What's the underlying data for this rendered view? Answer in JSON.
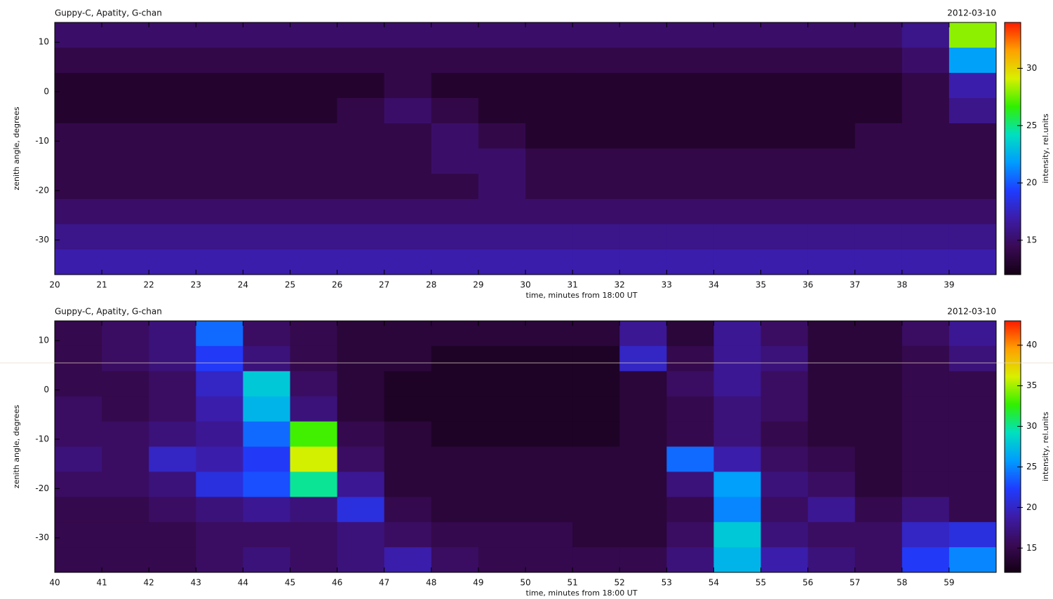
{
  "chart_data": [
    {
      "type": "heatmap",
      "title": "Guppy-C, Apatity, G-chan",
      "date": "2012-03-10",
      "xlabel": "time, minutes from 18:00 UT",
      "ylabel": "zenith angle, degrees",
      "colorbar_label": "intensity, rel.units",
      "xlim": [
        20,
        40
      ],
      "xticks": [
        20,
        21,
        22,
        23,
        24,
        25,
        26,
        27,
        28,
        29,
        30,
        31,
        32,
        33,
        34,
        35,
        36,
        37,
        38,
        39
      ],
      "ylim": [
        -37,
        14
      ],
      "yticks": [
        -30,
        -20,
        -10,
        0,
        10
      ],
      "clim": [
        12,
        34
      ],
      "cticks": [
        15,
        20,
        25,
        30
      ],
      "colormap": [
        "#140014",
        "#3a0a55",
        "#3c1ca8",
        "#1f3cff",
        "#009cff",
        "#00e0c0",
        "#30f000",
        "#d8f000",
        "#ffa000",
        "#ff1a00"
      ],
      "x": [
        20.5,
        21.5,
        22.5,
        23.5,
        24.5,
        25.5,
        26.5,
        27.5,
        28.5,
        29.5,
        30.5,
        31.5,
        32.5,
        33.5,
        34.5,
        35.5,
        36.5,
        37.5,
        38.5,
        39.5
      ],
      "y": [
        11.45,
        6.35,
        1.25,
        -3.85,
        -8.95,
        -14.05,
        -19.15,
        -24.25,
        -29.35,
        -34.45
      ],
      "z": [
        [
          15,
          15,
          15,
          15,
          15,
          15,
          15,
          15,
          15,
          15,
          15,
          15,
          15,
          15,
          15,
          15,
          15,
          15,
          16,
          28
        ],
        [
          14,
          14,
          14,
          14,
          14,
          14,
          14,
          14,
          14,
          14,
          14,
          14,
          14,
          14,
          14,
          14,
          14,
          14,
          15,
          22
        ],
        [
          13,
          13,
          13,
          13,
          13,
          13,
          13,
          14,
          13,
          13,
          13,
          13,
          13,
          13,
          13,
          13,
          13,
          13,
          14,
          17
        ],
        [
          13,
          13,
          13,
          13,
          13,
          13,
          14,
          15,
          14,
          13,
          13,
          13,
          13,
          13,
          13,
          13,
          13,
          13,
          14,
          16
        ],
        [
          14,
          14,
          14,
          14,
          14,
          14,
          14,
          14,
          15,
          14,
          13,
          13,
          13,
          13,
          13,
          13,
          13,
          14,
          14,
          14
        ],
        [
          14,
          14,
          14,
          14,
          14,
          14,
          14,
          14,
          15,
          15,
          14,
          14,
          14,
          14,
          14,
          14,
          14,
          14,
          14,
          14
        ],
        [
          14,
          14,
          14,
          14,
          14,
          14,
          14,
          14,
          14,
          15,
          14,
          14,
          14,
          14,
          14,
          14,
          14,
          14,
          14,
          14
        ],
        [
          15,
          15,
          15,
          15,
          15,
          15,
          15,
          15,
          15,
          15,
          15,
          15,
          15,
          15,
          15,
          15,
          15,
          15,
          15,
          15
        ],
        [
          16,
          16,
          16,
          16,
          16,
          16,
          16,
          16,
          16,
          16,
          16,
          16,
          16,
          16,
          16,
          16,
          16,
          16,
          16,
          16
        ],
        [
          17,
          17,
          17,
          17,
          17,
          17,
          17,
          17,
          17,
          17,
          17,
          17,
          17,
          17,
          17,
          17,
          17,
          17,
          17,
          17
        ]
      ]
    },
    {
      "type": "heatmap",
      "title": "Guppy-C, Apatity, G-chan",
      "date": "2012-03-10",
      "xlabel": "time, minutes from 18:00 UT",
      "ylabel": "zenith angle, degrees",
      "colorbar_label": "intensity, rel.units",
      "xlim": [
        40,
        60
      ],
      "xticks": [
        40,
        41,
        42,
        43,
        44,
        45,
        46,
        47,
        48,
        49,
        50,
        51,
        52,
        53,
        54,
        55,
        56,
        57,
        58,
        59
      ],
      "ylim": [
        -37,
        14
      ],
      "yticks": [
        -30,
        -20,
        -10,
        0,
        10
      ],
      "clim": [
        12,
        43
      ],
      "cticks": [
        15,
        20,
        25,
        30,
        35,
        40
      ],
      "colormap": [
        "#140014",
        "#3a0a55",
        "#3c1ca8",
        "#1f3cff",
        "#009cff",
        "#00e0c0",
        "#30f000",
        "#d8f000",
        "#ffa000",
        "#ff1a00"
      ],
      "x": [
        40.5,
        41.5,
        42.5,
        43.5,
        44.5,
        45.5,
        46.5,
        47.5,
        48.5,
        49.5,
        50.5,
        51.5,
        52.5,
        53.5,
        54.5,
        55.5,
        56.5,
        57.5,
        58.5,
        59.5
      ],
      "y": [
        11.45,
        6.35,
        1.25,
        -3.85,
        -8.95,
        -14.05,
        -19.15,
        -24.25,
        -29.35,
        -34.45
      ],
      "z": [
        [
          15,
          16,
          17,
          24,
          16,
          15,
          14,
          14,
          14,
          14,
          14,
          14,
          18,
          14,
          18,
          16,
          14,
          14,
          16,
          18
        ],
        [
          15,
          16,
          17,
          22,
          17,
          15,
          14,
          14,
          13,
          13,
          13,
          13,
          20,
          15,
          18,
          17,
          14,
          14,
          15,
          17
        ],
        [
          15,
          15,
          16,
          20,
          28,
          16,
          14,
          13,
          13,
          13,
          13,
          13,
          14,
          16,
          18,
          16,
          14,
          14,
          15,
          15
        ],
        [
          16,
          15,
          16,
          19,
          27,
          17,
          14,
          13,
          13,
          13,
          13,
          13,
          14,
          15,
          17,
          16,
          14,
          14,
          15,
          15
        ],
        [
          16,
          16,
          17,
          18,
          24,
          33,
          15,
          14,
          13,
          13,
          13,
          13,
          14,
          15,
          17,
          15,
          14,
          14,
          15,
          15
        ],
        [
          17,
          16,
          20,
          19,
          22,
          36,
          16,
          14,
          14,
          14,
          14,
          14,
          14,
          24,
          19,
          16,
          15,
          14,
          15,
          15
        ],
        [
          16,
          16,
          17,
          21,
          23,
          30,
          18,
          14,
          14,
          14,
          14,
          14,
          14,
          17,
          26,
          17,
          16,
          14,
          15,
          15
        ],
        [
          15,
          15,
          16,
          17,
          18,
          17,
          21,
          15,
          14,
          14,
          14,
          14,
          14,
          15,
          25,
          16,
          18,
          15,
          17,
          15
        ],
        [
          15,
          15,
          15,
          16,
          16,
          16,
          17,
          16,
          15,
          15,
          15,
          14,
          14,
          16,
          28,
          17,
          16,
          16,
          20,
          21
        ],
        [
          15,
          15,
          15,
          16,
          17,
          16,
          17,
          19,
          16,
          15,
          15,
          15,
          15,
          17,
          27,
          19,
          17,
          16,
          22,
          25
        ]
      ]
    }
  ]
}
